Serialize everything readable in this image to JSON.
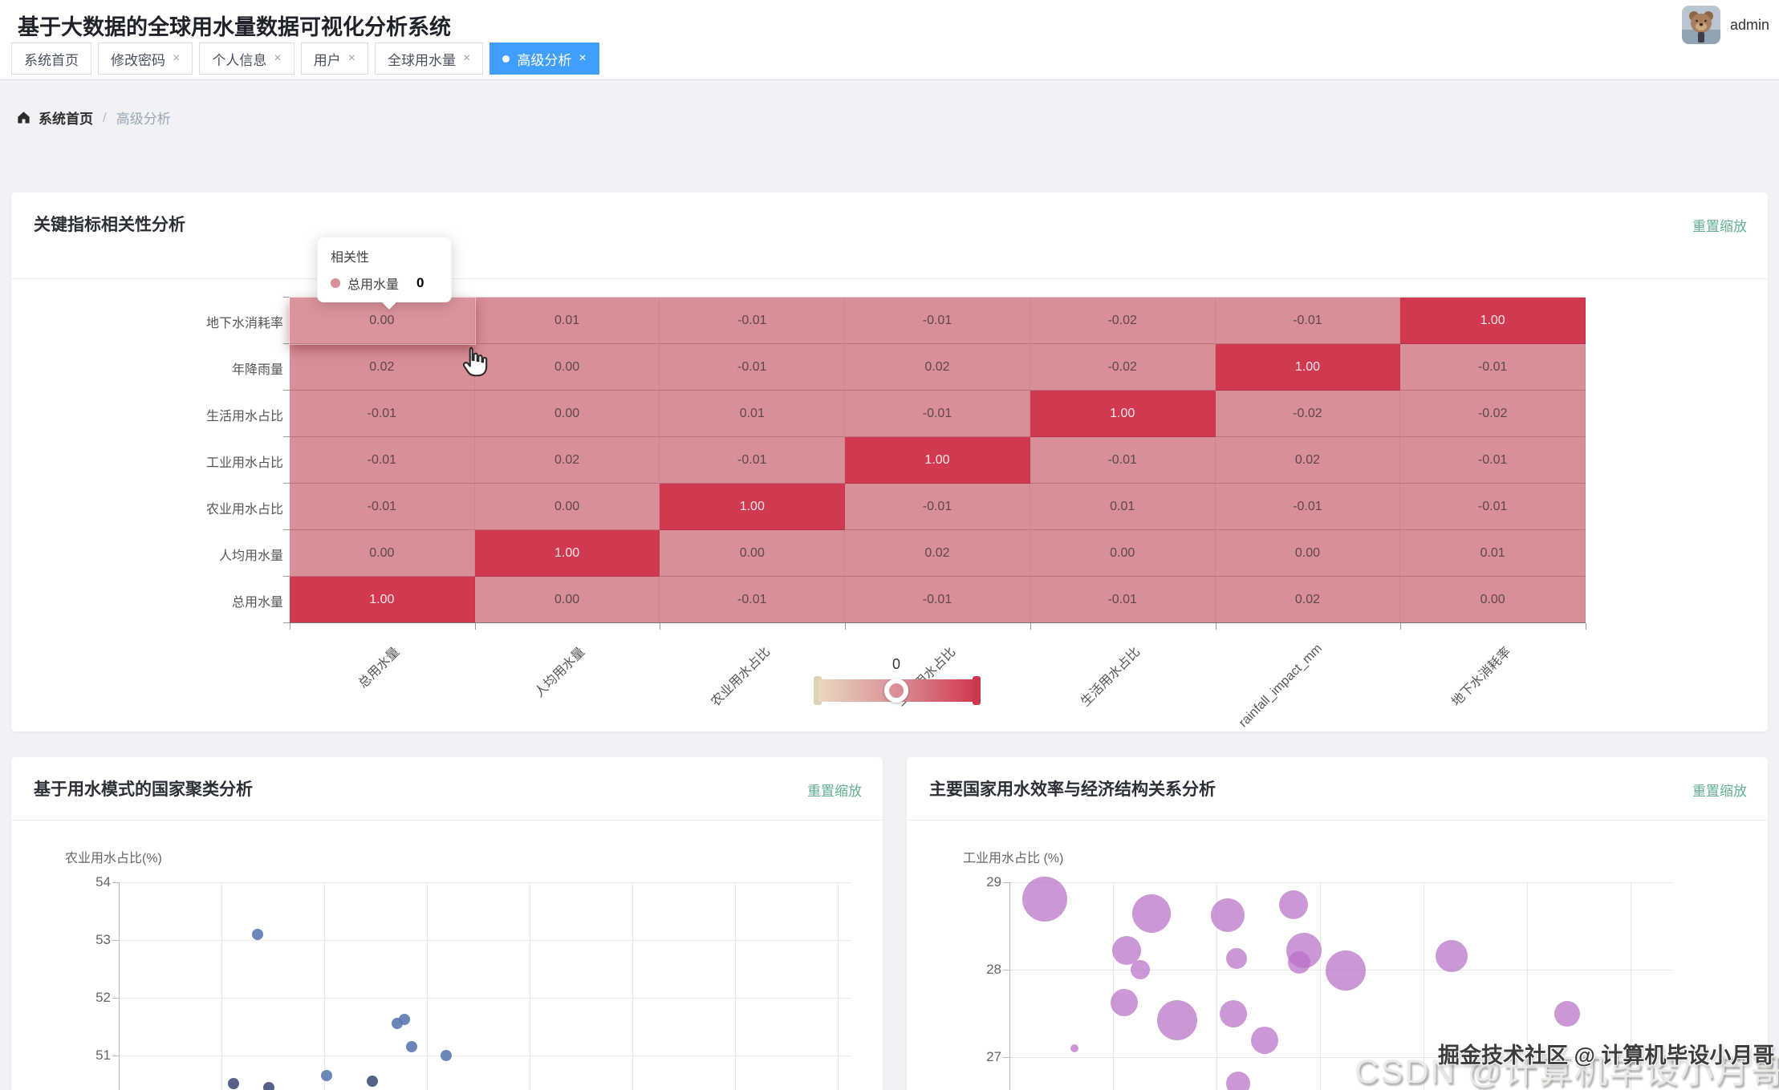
{
  "header": {
    "title": "基于大数据的全球用水量数据可视化分析系统",
    "username": "admin"
  },
  "tabs": [
    {
      "label": "系统首页",
      "closable": false,
      "active": false
    },
    {
      "label": "修改密码",
      "closable": true,
      "active": false
    },
    {
      "label": "个人信息",
      "closable": true,
      "active": false
    },
    {
      "label": "用户",
      "closable": true,
      "active": false
    },
    {
      "label": "全球用水量",
      "closable": true,
      "active": false
    },
    {
      "label": "高级分析",
      "closable": true,
      "active": true
    }
  ],
  "icons": {
    "close": "×",
    "breadcrumb_separator": "/"
  },
  "breadcrumb": {
    "home": "系统首页",
    "current": "高级分析"
  },
  "panels": {
    "correlation": {
      "title": "关键指标相关性分析",
      "reset_zoom": "重置缩放"
    },
    "cluster": {
      "title": "基于用水模式的国家聚类分析",
      "reset_zoom": "重置缩放"
    },
    "efficiency": {
      "title": "主要国家用水效率与经济结构关系分析",
      "reset_zoom": "重置缩放"
    }
  },
  "tooltip": {
    "title": "相关性",
    "series": "总用水量",
    "value": "0"
  },
  "visual_map": {
    "handle_label": "0",
    "min": -1,
    "max": 1
  },
  "watermarks": {
    "csdn": "CSDN @计算机毕设小月哥",
    "juejin": "掘金技术社区 @ 计算机毕设小月哥"
  },
  "colors": {
    "accent_blue": "#409eff",
    "link_green": "#5fae8e",
    "heat_low": "#e8d8c0",
    "heat_mid": "#d98f97",
    "heat_high": "#d13950",
    "scatter_blue": "#5b79b1",
    "scatter_navy": "#454f7e",
    "bubble_purple": "#b86fc6"
  },
  "chart_data": [
    {
      "type": "heatmap",
      "title": "关键指标相关性分析",
      "x_categories": [
        "总用水量",
        "人均用水量",
        "农业用水占比",
        "工业用水占比",
        "生活用水占比",
        "rainfall_impact_mm",
        "地下水消耗率"
      ],
      "y_categories_top_to_bottom": [
        "地下水消耗率",
        "年降雨量",
        "生活用水占比",
        "工业用水占比",
        "农业用水占比",
        "人均用水量",
        "总用水量"
      ],
      "matrix_rows_top_to_bottom": [
        [
          0.0,
          0.01,
          -0.01,
          -0.01,
          -0.02,
          -0.01,
          1.0
        ],
        [
          0.02,
          0.0,
          -0.01,
          0.02,
          -0.02,
          1.0,
          -0.01
        ],
        [
          -0.01,
          0.0,
          0.01,
          -0.01,
          1.0,
          -0.02,
          -0.02
        ],
        [
          -0.01,
          0.02,
          -0.01,
          1.0,
          -0.01,
          0.02,
          -0.01
        ],
        [
          -0.01,
          0.0,
          1.0,
          -0.01,
          0.01,
          -0.01,
          -0.01
        ],
        [
          0.0,
          1.0,
          0.0,
          0.02,
          0.0,
          0.0,
          0.01
        ],
        [
          1.0,
          0.0,
          -0.01,
          -0.01,
          -0.01,
          0.02,
          0.0
        ]
      ],
      "hovered_cell": {
        "row": 0,
        "col": 0,
        "value": 0
      },
      "visual_map_range": [
        -1,
        1
      ],
      "legend_position": "bottom-center"
    },
    {
      "type": "scatter",
      "title": "基于用水模式的国家聚类分析",
      "ylabel": "农业用水占比(%)",
      "y_ticks": [
        54,
        53,
        52,
        51
      ],
      "y_axis_visible_range": [
        50.3,
        54
      ],
      "grid": true,
      "points": [
        {
          "x_frac": 0.186,
          "y": 53.1,
          "cluster": "blue"
        },
        {
          "x_frac": 0.373,
          "y": 51.55,
          "cluster": "blue"
        },
        {
          "x_frac": 0.383,
          "y": 51.62,
          "cluster": "blue"
        },
        {
          "x_frac": 0.392,
          "y": 51.15,
          "cluster": "blue"
        },
        {
          "x_frac": 0.439,
          "y": 51.0,
          "cluster": "blue"
        },
        {
          "x_frac": 0.278,
          "y": 50.65,
          "cluster": "blue"
        },
        {
          "x_frac": 0.154,
          "y": 50.51,
          "cluster": "navy"
        },
        {
          "x_frac": 0.34,
          "y": 50.55,
          "cluster": "navy"
        },
        {
          "x_frac": 0.201,
          "y": 50.45,
          "cluster": "navy"
        }
      ]
    },
    {
      "type": "bubble",
      "title": "主要国家用水效率与经济结构关系分析",
      "ylabel": "工业用水占比 (%)",
      "y_ticks": [
        29,
        28,
        27
      ],
      "y_axis_visible_range": [
        26.6,
        29
      ],
      "grid": true,
      "bubbles": [
        {
          "x_frac": 0.053,
          "y": 28.81,
          "r": 28
        },
        {
          "x_frac": 0.214,
          "y": 28.64,
          "r": 24
        },
        {
          "x_frac": 0.329,
          "y": 28.62,
          "r": 21
        },
        {
          "x_frac": 0.428,
          "y": 28.74,
          "r": 18
        },
        {
          "x_frac": 0.177,
          "y": 28.22,
          "r": 18
        },
        {
          "x_frac": 0.197,
          "y": 28.0,
          "r": 12
        },
        {
          "x_frac": 0.342,
          "y": 28.13,
          "r": 13
        },
        {
          "x_frac": 0.444,
          "y": 28.22,
          "r": 22
        },
        {
          "x_frac": 0.437,
          "y": 28.08,
          "r": 14
        },
        {
          "x_frac": 0.507,
          "y": 27.99,
          "r": 25
        },
        {
          "x_frac": 0.666,
          "y": 28.16,
          "r": 20
        },
        {
          "x_frac": 0.173,
          "y": 27.62,
          "r": 17
        },
        {
          "x_frac": 0.253,
          "y": 27.42,
          "r": 25
        },
        {
          "x_frac": 0.337,
          "y": 27.5,
          "r": 17
        },
        {
          "x_frac": 0.385,
          "y": 27.19,
          "r": 17
        },
        {
          "x_frac": 0.098,
          "y": 27.1,
          "r": 5
        },
        {
          "x_frac": 0.84,
          "y": 27.5,
          "r": 16
        },
        {
          "x_frac": 0.345,
          "y": 26.7,
          "r": 15
        }
      ]
    }
  ]
}
